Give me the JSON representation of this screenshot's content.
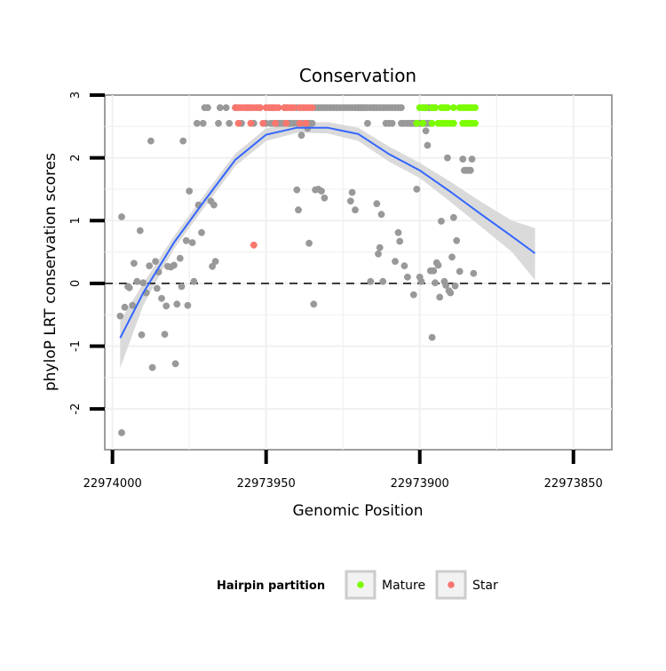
{
  "chart_data": {
    "type": "scatter",
    "title": "Conservation",
    "xlabel": "Genomic Position",
    "ylabel": "phyloP LRT conservation scores",
    "x_reversed": true,
    "xlim": [
      22974002.5,
      22973837.5
    ],
    "ylim": [
      -2.65,
      3.0
    ],
    "x_ticks": [
      22974000,
      22973950,
      22973900,
      22973850
    ],
    "x_tick_labels": [
      "22974000",
      "22973950",
      "22973900",
      "22973850"
    ],
    "y_ticks": [
      -2,
      -1,
      0,
      1,
      2,
      3
    ],
    "y_tick_labels": [
      "-2",
      "-1",
      "0",
      "1",
      "2",
      "3"
    ],
    "reference_line": 0,
    "grid": true,
    "legend": {
      "title": "Hairpin partition",
      "placement": "bottom",
      "entries": [
        {
          "label": "Mature",
          "color": "#7cfc00"
        },
        {
          "label": "Star",
          "color": "#f8766d"
        }
      ]
    },
    "colors": {
      "other": "#999999",
      "mature": "#7cfc00",
      "star": "#f8766d",
      "smooth": "#3366ff",
      "ribbon": "#d6d6d6"
    },
    "series": [
      {
        "group": "other",
        "points": [
          [
            22973997.5,
            -0.52
          ],
          [
            22973997,
            1.06
          ],
          [
            22973996,
            -0.38
          ],
          [
            22973995,
            -0.05
          ],
          [
            22973994.5,
            -0.07
          ],
          [
            22973993.5,
            -0.35
          ],
          [
            22973993,
            0.32
          ],
          [
            22973992,
            0.03
          ],
          [
            22973991,
            0.84
          ],
          [
            22973990.5,
            -0.82
          ],
          [
            22973990,
            0.01
          ],
          [
            22973989,
            -0.15
          ],
          [
            22973988,
            0.28
          ],
          [
            22973987.5,
            2.27
          ],
          [
            22973987,
            -1.34
          ],
          [
            22973986,
            0.35
          ],
          [
            22973985.5,
            -0.08
          ],
          [
            22973985,
            0.18
          ],
          [
            22973984,
            -0.24
          ],
          [
            22973983,
            -0.81
          ],
          [
            22973982.5,
            -0.36
          ],
          [
            22973982,
            0.27
          ],
          [
            22973981,
            0.26
          ],
          [
            22973980,
            0.29
          ],
          [
            22973979.5,
            -1.28
          ],
          [
            22973979,
            -0.33
          ],
          [
            22973978,
            0.4
          ],
          [
            22973977.5,
            -0.05
          ],
          [
            22973977,
            2.27
          ],
          [
            22973976,
            0.68
          ],
          [
            22973975.5,
            -0.35
          ],
          [
            22973975,
            1.47
          ],
          [
            22973974,
            0.65
          ],
          [
            22973973.5,
            0.03
          ],
          [
            22973972.5,
            2.55
          ],
          [
            22973972,
            1.25
          ],
          [
            22973971,
            0.81
          ],
          [
            22973970.5,
            2.55
          ],
          [
            22973970,
            2.8
          ],
          [
            22973969,
            2.8
          ],
          [
            22973968,
            1.31
          ],
          [
            22973967.5,
            0.27
          ],
          [
            22973967,
            1.25
          ],
          [
            22973966.5,
            0.35
          ],
          [
            22973965.5,
            2.55
          ],
          [
            22973965,
            2.8
          ],
          [
            22973963,
            2.8
          ],
          [
            22973962,
            2.55
          ],
          [
            22973960,
            2.8
          ],
          [
            22973958,
            2.55
          ],
          [
            22973956,
            2.8
          ],
          [
            22973954,
            2.55
          ],
          [
            22973952,
            2.8
          ],
          [
            22973950,
            2.55
          ],
          [
            22973948,
            2.8
          ],
          [
            22973946,
            2.55
          ],
          [
            22973944,
            2.8
          ],
          [
            22973942,
            2.55
          ],
          [
            22973940,
            2.8
          ],
          [
            22973939,
            2.55
          ],
          [
            22973938,
            2.55
          ],
          [
            22973937,
            2.55
          ],
          [
            22973936,
            2.55
          ],
          [
            22973935,
            2.55
          ],
          [
            22973934,
            2.8
          ],
          [
            22973933,
            2.8
          ],
          [
            22973932,
            2.8
          ],
          [
            22973931,
            2.8
          ],
          [
            22973930,
            2.8
          ],
          [
            22973929,
            2.8
          ],
          [
            22973928,
            2.8
          ],
          [
            22973927,
            2.8
          ],
          [
            22973926,
            2.8
          ],
          [
            22973925,
            2.8
          ],
          [
            22973924,
            2.8
          ],
          [
            22973923,
            2.8
          ],
          [
            22973922,
            2.8
          ],
          [
            22973921,
            2.8
          ],
          [
            22973920,
            2.8
          ],
          [
            22973919,
            2.8
          ],
          [
            22973918,
            2.8
          ],
          [
            22973917,
            2.8
          ],
          [
            22973916,
            2.8
          ],
          [
            22973915,
            2.8
          ],
          [
            22973914,
            2.8
          ],
          [
            22973913,
            2.8
          ],
          [
            22973912,
            2.8
          ],
          [
            22973911,
            2.8
          ],
          [
            22973910,
            2.8
          ],
          [
            22973909,
            2.8
          ],
          [
            22973908,
            2.8
          ],
          [
            22973907,
            2.8
          ],
          [
            22973906,
            2.55
          ],
          [
            22973905,
            2.55
          ],
          [
            22973904,
            2.55
          ],
          [
            22973903,
            2.55
          ],
          [
            22973902,
            2.55
          ],
          [
            22973901,
            2.55
          ],
          [
            22973900,
            2.55
          ],
          [
            22973899,
            2.8
          ],
          [
            22973898,
            2.8
          ],
          [
            22973897,
            2.8
          ],
          [
            22973896,
            2.8
          ],
          [
            22973895,
            2.8
          ],
          [
            22973902.5,
            2.55
          ],
          [
            22973901.5,
            2.55
          ],
          [
            22973899.5,
            2.55
          ],
          [
            22973898.5,
            2.55
          ],
          [
            22973897.5,
            2.55
          ],
          [
            22973896.5,
            2.55
          ],
          [
            22973940,
            2.55
          ],
          [
            22973941,
            2.55
          ],
          [
            22973942.5,
            2.55
          ],
          [
            22973943.5,
            2.55
          ],
          [
            22973944.5,
            2.55
          ],
          [
            22973945.5,
            2.55
          ],
          [
            22973946.5,
            2.55
          ],
          [
            22973947.5,
            2.55
          ],
          [
            22973948.5,
            2.55
          ],
          [
            22973939.5,
            1.17
          ],
          [
            22973938.5,
            2.36
          ],
          [
            22973940,
            1.49
          ],
          [
            22973936,
            0.64
          ],
          [
            22973934,
            1.49
          ],
          [
            22973933,
            1.5
          ],
          [
            22973932,
            1.47
          ],
          [
            22973931,
            1.36
          ],
          [
            22973934.5,
            -0.33
          ],
          [
            22973936.5,
            2.47
          ],
          [
            22973922,
            1.45
          ],
          [
            22973922.5,
            1.31
          ],
          [
            22973921,
            1.17
          ],
          [
            22973920,
            2.8
          ],
          [
            22973919,
            2.8
          ],
          [
            22973918,
            2.8
          ],
          [
            22973917,
            2.55
          ],
          [
            22973916,
            0.03
          ],
          [
            22973915,
            2.8
          ],
          [
            22973914,
            1.27
          ],
          [
            22973913.5,
            0.47
          ],
          [
            22973913,
            0.57
          ],
          [
            22973912.5,
            1.1
          ],
          [
            22973912,
            0.03
          ],
          [
            22973911,
            2.55
          ],
          [
            22973910,
            2.55
          ],
          [
            22973909,
            2.55
          ],
          [
            22973908,
            0.35
          ],
          [
            22973907,
            0.81
          ],
          [
            22973906.5,
            0.67
          ],
          [
            22973906,
            2.8
          ],
          [
            22973905.5,
            2.55
          ],
          [
            22973905,
            0.28
          ],
          [
            22973904,
            0.1
          ],
          [
            22973903,
            2.55
          ],
          [
            22973902,
            -0.18
          ],
          [
            22973901,
            1.5
          ],
          [
            22973900,
            0.1
          ],
          [
            22973899.5,
            0.03
          ],
          [
            22973898,
            2.43
          ],
          [
            22973897.5,
            2.2
          ],
          [
            22973896.5,
            0.2
          ],
          [
            22973896,
            -0.86
          ],
          [
            22973895.5,
            0.2
          ],
          [
            22973895,
            0.01
          ],
          [
            22973894.5,
            0.33
          ],
          [
            22973894,
            0.29
          ],
          [
            22973893.5,
            -0.22
          ],
          [
            22973893,
            0.99
          ],
          [
            22973892,
            0.03
          ],
          [
            22973891.5,
            -0.03
          ],
          [
            22973891,
            2.0
          ],
          [
            22973890.5,
            -0.12
          ],
          [
            22973890,
            -0.15
          ],
          [
            22973889.5,
            0.42
          ],
          [
            22973889,
            1.05
          ],
          [
            22973888.5,
            -0.04
          ],
          [
            22973888,
            0.68
          ],
          [
            22973887,
            0.19
          ],
          [
            22973886,
            1.98
          ],
          [
            22973885.5,
            1.8
          ],
          [
            22973885,
            1.8
          ],
          [
            22973884.5,
            1.8
          ],
          [
            22973884,
            1.8
          ],
          [
            22973883.5,
            1.8
          ],
          [
            22973883,
            1.98
          ],
          [
            22973882.5,
            0.16
          ],
          [
            22973997,
            -2.38
          ]
        ]
      },
      {
        "group": "star",
        "points": [
          [
            22973960,
            2.8
          ],
          [
            22973959,
            2.8
          ],
          [
            22973958,
            2.8
          ],
          [
            22973957,
            2.8
          ],
          [
            22973956,
            2.8
          ],
          [
            22973955,
            2.8
          ],
          [
            22973954,
            2.8
          ],
          [
            22973953,
            2.8
          ],
          [
            22973952,
            2.8
          ],
          [
            22973950,
            2.8
          ],
          [
            22973949,
            2.8
          ],
          [
            22973948,
            2.8
          ],
          [
            22973947,
            2.8
          ],
          [
            22973946,
            2.8
          ],
          [
            22973944,
            2.8
          ],
          [
            22973943,
            2.8
          ],
          [
            22973942,
            2.8
          ],
          [
            22973941,
            2.8
          ],
          [
            22973939,
            2.8
          ],
          [
            22973938,
            2.8
          ],
          [
            22973937,
            2.8
          ],
          [
            22973936,
            2.8
          ],
          [
            22973935,
            2.8
          ],
          [
            22973959,
            2.55
          ],
          [
            22973955,
            2.55
          ],
          [
            22973951,
            2.55
          ],
          [
            22973947,
            2.55
          ],
          [
            22973943.5,
            2.55
          ],
          [
            22973939,
            2.55
          ],
          [
            22973937,
            2.55
          ],
          [
            22973954,
            0.61
          ]
        ]
      },
      {
        "group": "mature",
        "points": [
          [
            22973900,
            2.8
          ],
          [
            22973899,
            2.8
          ],
          [
            22973898,
            2.8
          ],
          [
            22973896,
            2.8
          ],
          [
            22973895,
            2.8
          ],
          [
            22973893,
            2.8
          ],
          [
            22973892,
            2.8
          ],
          [
            22973891,
            2.8
          ],
          [
            22973889,
            2.8
          ],
          [
            22973887,
            2.8
          ],
          [
            22973886,
            2.8
          ],
          [
            22973885,
            2.8
          ],
          [
            22973884,
            2.8
          ],
          [
            22973883,
            2.8
          ],
          [
            22973882,
            2.8
          ],
          [
            22973901,
            2.55
          ],
          [
            22973899,
            2.55
          ],
          [
            22973896,
            2.55
          ],
          [
            22973894,
            2.55
          ],
          [
            22973893,
            2.55
          ],
          [
            22973892,
            2.55
          ],
          [
            22973891,
            2.55
          ],
          [
            22973890,
            2.55
          ],
          [
            22973889,
            2.55
          ],
          [
            22973886,
            2.55
          ],
          [
            22973885,
            2.55
          ],
          [
            22973884,
            2.55
          ],
          [
            22973883,
            2.55
          ],
          [
            22973882,
            2.55
          ]
        ]
      }
    ],
    "smooth": {
      "x": [
        22973997.5,
        22973990,
        22973980,
        22973970,
        22973960,
        22973950,
        22973940,
        22973930,
        22973920,
        22973910,
        22973900,
        22973890,
        22973880,
        22973870,
        22973862.5
      ],
      "y": [
        -0.87,
        -0.15,
        0.65,
        1.32,
        1.97,
        2.37,
        2.48,
        2.48,
        2.38,
        2.06,
        1.8,
        1.46,
        1.1,
        0.75,
        0.48
      ],
      "upper": [
        -0.6,
        0.0,
        0.75,
        1.42,
        2.07,
        2.47,
        2.56,
        2.57,
        2.48,
        2.18,
        1.92,
        1.62,
        1.3,
        1.0,
        0.88
      ],
      "lower": [
        -1.35,
        -0.35,
        0.55,
        1.22,
        1.87,
        2.27,
        2.4,
        2.39,
        2.27,
        1.94,
        1.68,
        1.3,
        0.9,
        0.5,
        0.05
      ]
    }
  }
}
